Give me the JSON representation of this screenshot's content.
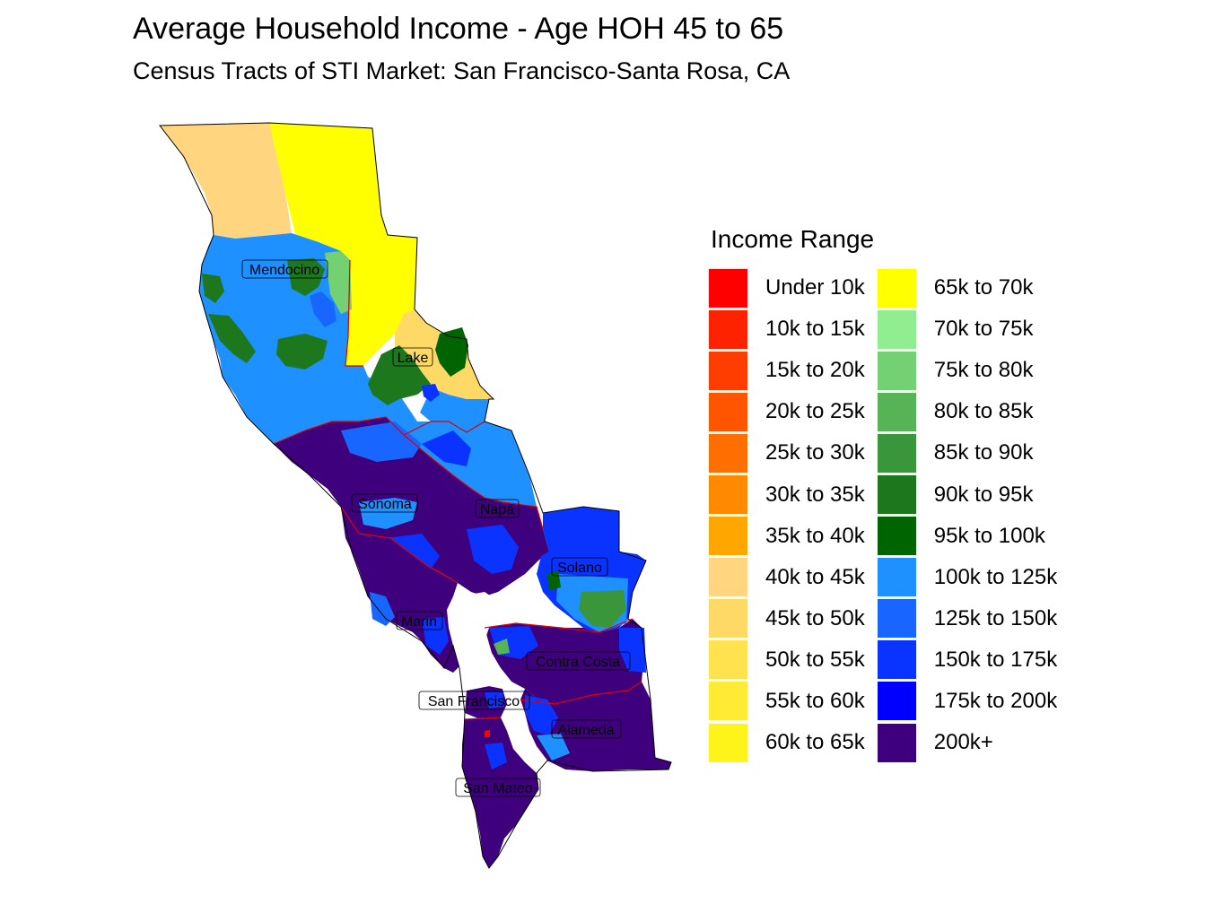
{
  "title": "Average Household Income - Age HOH 45 to 65",
  "subtitle": "Census Tracts of STI Market: San Francisco-Santa Rosa, CA",
  "legend": {
    "title": "Income Range",
    "items": [
      {
        "label": "Under 10k",
        "color": "#FF0000"
      },
      {
        "label": "10k to 15k",
        "color": "#FF2200"
      },
      {
        "label": "15k to 20k",
        "color": "#FF3D00"
      },
      {
        "label": "20k to 25k",
        "color": "#FF5500"
      },
      {
        "label": "25k to 30k",
        "color": "#FF6E00"
      },
      {
        "label": "30k to 35k",
        "color": "#FF8A00"
      },
      {
        "label": "35k to 40k",
        "color": "#FFA600"
      },
      {
        "label": "40k to 45k",
        "color": "#FFD580"
      },
      {
        "label": "45k to 50k",
        "color": "#FFD966"
      },
      {
        "label": "50k to 55k",
        "color": "#FFE24D"
      },
      {
        "label": "55k to 60k",
        "color": "#FFEB33"
      },
      {
        "label": "60k to 65k",
        "color": "#FFF41A"
      },
      {
        "label": "65k to 70k",
        "color": "#FFFF00"
      },
      {
        "label": "70k to 75k",
        "color": "#90EE90"
      },
      {
        "label": "75k to 80k",
        "color": "#73D173"
      },
      {
        "label": "80k to 85k",
        "color": "#56B356"
      },
      {
        "label": "85k to 90k",
        "color": "#3A963A"
      },
      {
        "label": "90k to 95k",
        "color": "#1D781D"
      },
      {
        "label": "95k to 100k",
        "color": "#006400"
      },
      {
        "label": "100k to 125k",
        "color": "#1E90FF"
      },
      {
        "label": "125k to 150k",
        "color": "#1866FF"
      },
      {
        "label": "150k to 175k",
        "color": "#0A33FF"
      },
      {
        "label": "175k to 200k",
        "color": "#0000FF"
      },
      {
        "label": "200k+",
        "color": "#3F007D"
      }
    ]
  },
  "counties": [
    {
      "name": "Mendocino"
    },
    {
      "name": "Lake"
    },
    {
      "name": "Sonoma"
    },
    {
      "name": "Napa"
    },
    {
      "name": "Solano"
    },
    {
      "name": "Marin"
    },
    {
      "name": "Contra Costa"
    },
    {
      "name": "San Francisco"
    },
    {
      "name": "Alameda"
    },
    {
      "name": "San Mateo"
    }
  ]
}
